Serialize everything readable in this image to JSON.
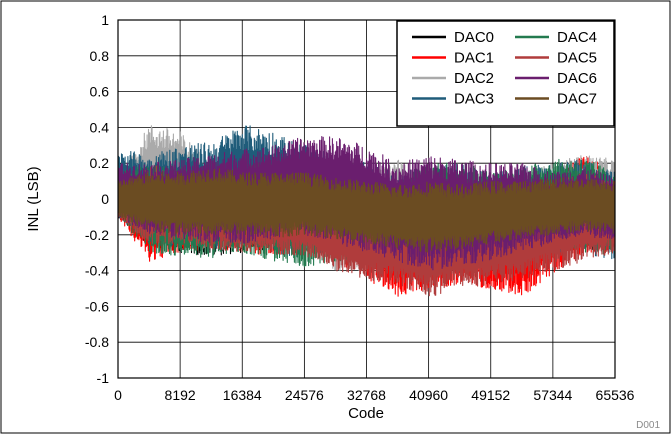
{
  "chart_data": {
    "type": "line",
    "xlabel": "Code",
    "ylabel": "INL (LSB)",
    "xlim": [
      0,
      65536
    ],
    "ylim": [
      -1,
      1
    ],
    "xticks": [
      0,
      8192,
      16384,
      24576,
      32768,
      40960,
      49152,
      57344,
      65536
    ],
    "yticks": [
      -1,
      -0.8,
      -0.6,
      -0.4,
      -0.2,
      0,
      0.2,
      0.4,
      0.6,
      0.8,
      1
    ],
    "xtick_labels": [
      "0",
      "8192",
      "16384",
      "24576",
      "32768",
      "40960",
      "49152",
      "57344",
      "65536"
    ],
    "ytick_labels": [
      "-1",
      "-0.8",
      "-0.6",
      "-0.4",
      "-0.2",
      "0",
      "0.2",
      "0.4",
      "0.6",
      "0.8",
      "1"
    ],
    "grid": true,
    "legend_position": "top-right",
    "footnote": "D001",
    "series": [
      {
        "name": "DAC0",
        "color": "#000000",
        "x": [
          0,
          4096,
          8192,
          12288,
          16384,
          20480,
          24576,
          28672,
          32768,
          36864,
          40960,
          45056,
          49152,
          53248,
          57344,
          61440,
          65536
        ],
        "lower": [
          -0.1,
          -0.28,
          -0.3,
          -0.32,
          -0.3,
          -0.28,
          -0.3,
          -0.32,
          -0.34,
          -0.33,
          -0.36,
          -0.3,
          -0.35,
          -0.32,
          -0.3,
          -0.28,
          -0.3
        ],
        "upper": [
          0.1,
          0.22,
          0.18,
          0.2,
          0.16,
          0.15,
          0.18,
          0.12,
          0.1,
          0.05,
          0.08,
          0.1,
          0.06,
          0.08,
          0.12,
          0.15,
          0.1
        ]
      },
      {
        "name": "DAC1",
        "color": "#ff0000",
        "x": [
          0,
          4096,
          8192,
          12288,
          16384,
          20480,
          24576,
          28672,
          32768,
          36864,
          40960,
          45056,
          49152,
          53248,
          57344,
          61440,
          65536
        ],
        "lower": [
          -0.1,
          -0.35,
          -0.3,
          -0.28,
          -0.3,
          -0.32,
          -0.3,
          -0.35,
          -0.45,
          -0.55,
          -0.5,
          -0.48,
          -0.5,
          -0.55,
          -0.42,
          -0.3,
          -0.3
        ],
        "upper": [
          0.1,
          0.18,
          0.15,
          0.12,
          0.15,
          0.1,
          0.12,
          0.1,
          0.05,
          0.0,
          0.02,
          0.05,
          0.02,
          0.05,
          0.15,
          0.25,
          0.15
        ]
      },
      {
        "name": "DAC2",
        "color": "#aaaaaa",
        "x": [
          0,
          4096,
          8192,
          12288,
          16384,
          20480,
          24576,
          28672,
          32768,
          36864,
          40960,
          45056,
          49152,
          53248,
          57344,
          61440,
          65536
        ],
        "lower": [
          -0.1,
          -0.2,
          -0.25,
          -0.3,
          -0.28,
          -0.25,
          -0.28,
          -0.4,
          -0.4,
          -0.3,
          -0.35,
          -0.3,
          -0.28,
          -0.25,
          -0.2,
          -0.15,
          -0.2
        ],
        "upper": [
          0.1,
          0.42,
          0.38,
          0.2,
          0.3,
          0.25,
          0.2,
          0.18,
          0.15,
          0.22,
          0.1,
          0.12,
          0.1,
          0.15,
          0.2,
          0.25,
          0.22
        ]
      },
      {
        "name": "DAC3",
        "color": "#1f5c7a",
        "x": [
          0,
          4096,
          8192,
          12288,
          16384,
          20480,
          24576,
          28672,
          32768,
          36864,
          40960,
          45056,
          49152,
          53248,
          57344,
          61440,
          65536
        ],
        "lower": [
          -0.1,
          -0.25,
          -0.28,
          -0.3,
          -0.25,
          -0.3,
          -0.35,
          -0.3,
          -0.32,
          -0.3,
          -0.35,
          -0.32,
          -0.3,
          -0.28,
          -0.3,
          -0.3,
          -0.35
        ],
        "upper": [
          0.28,
          0.25,
          0.3,
          0.32,
          0.42,
          0.38,
          0.3,
          0.25,
          0.2,
          0.15,
          0.18,
          0.2,
          0.15,
          0.18,
          0.2,
          0.22,
          0.15
        ]
      },
      {
        "name": "DAC4",
        "color": "#237a4f",
        "x": [
          0,
          4096,
          8192,
          12288,
          16384,
          20480,
          24576,
          28672,
          32768,
          36864,
          40960,
          45056,
          49152,
          53248,
          57344,
          61440,
          65536
        ],
        "lower": [
          -0.1,
          -0.3,
          -0.32,
          -0.33,
          -0.3,
          -0.35,
          -0.38,
          -0.35,
          -0.33,
          -0.35,
          -0.38,
          -0.35,
          -0.35,
          -0.3,
          -0.28,
          -0.3,
          -0.32
        ],
        "upper": [
          0.15,
          0.2,
          0.18,
          0.15,
          0.2,
          0.22,
          0.2,
          0.18,
          0.15,
          0.1,
          0.2,
          0.22,
          0.15,
          0.18,
          0.22,
          0.23,
          0.15
        ]
      },
      {
        "name": "DAC5",
        "color": "#b03c3c",
        "x": [
          0,
          4096,
          8192,
          12288,
          16384,
          20480,
          24576,
          28672,
          32768,
          36864,
          40960,
          45056,
          49152,
          53248,
          57344,
          61440,
          65536
        ],
        "lower": [
          -0.1,
          -0.25,
          -0.25,
          -0.28,
          -0.3,
          -0.3,
          -0.32,
          -0.4,
          -0.45,
          -0.48,
          -0.55,
          -0.5,
          -0.48,
          -0.45,
          -0.4,
          -0.35,
          -0.3
        ],
        "upper": [
          0.05,
          0.2,
          0.15,
          0.15,
          0.12,
          0.1,
          0.08,
          0.05,
          0.05,
          0.0,
          0.0,
          0.02,
          0.02,
          0.05,
          0.1,
          0.15,
          0.1
        ]
      },
      {
        "name": "DAC6",
        "color": "#6a1e6e",
        "x": [
          0,
          4096,
          8192,
          12288,
          16384,
          20480,
          24576,
          28672,
          32768,
          36864,
          40960,
          45056,
          49152,
          53248,
          57344,
          61440,
          65536
        ],
        "lower": [
          -0.1,
          -0.2,
          -0.22,
          -0.25,
          -0.25,
          -0.22,
          -0.2,
          -0.25,
          -0.3,
          -0.35,
          -0.4,
          -0.38,
          -0.35,
          -0.3,
          -0.25,
          -0.2,
          -0.25
        ],
        "upper": [
          0.2,
          0.2,
          0.22,
          0.25,
          0.28,
          0.3,
          0.35,
          0.35,
          0.3,
          0.2,
          0.25,
          0.22,
          0.2,
          0.2,
          0.15,
          0.18,
          0.12
        ]
      },
      {
        "name": "DAC7",
        "color": "#6b4c22",
        "x": [
          0,
          4096,
          8192,
          12288,
          16384,
          20480,
          24576,
          28672,
          32768,
          36864,
          40960,
          45056,
          49152,
          53248,
          57344,
          61440,
          65536
        ],
        "lower": [
          -0.1,
          -0.18,
          -0.2,
          -0.2,
          -0.2,
          -0.22,
          -0.2,
          -0.22,
          -0.25,
          -0.28,
          -0.3,
          -0.28,
          -0.25,
          -0.22,
          -0.2,
          -0.18,
          -0.2
        ],
        "upper": [
          0.1,
          0.15,
          0.15,
          0.18,
          0.15,
          0.15,
          0.15,
          0.12,
          0.1,
          0.08,
          0.1,
          0.08,
          0.1,
          0.1,
          0.12,
          0.12,
          0.1
        ]
      }
    ]
  }
}
